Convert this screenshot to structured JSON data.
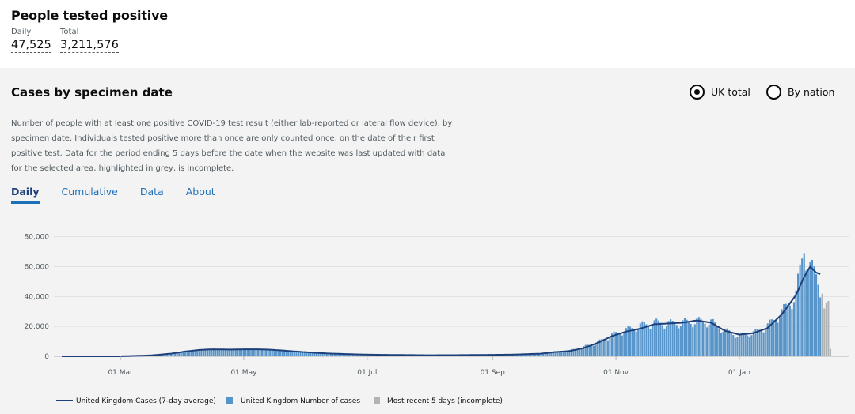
{
  "headline": {
    "title": "People tested positive",
    "daily_label": "Daily",
    "daily_value": "47,525",
    "total_label": "Total",
    "total_value": "3,211,576"
  },
  "card": {
    "title": "Cases by specimen date",
    "radio_options": [
      {
        "label": "UK total",
        "selected": true
      },
      {
        "label": "By nation",
        "selected": false
      }
    ],
    "description": "Number of people with at least one positive COVID-19 test result (either lab-reported or lateral flow device), by specimen date. Individuals tested positive more than once are only counted once, on the date of their first positive test. Data for the period ending 5 days before the date when the website was last updated with data for the selected area, highlighted in grey, is incomplete.",
    "tabs": [
      "Daily",
      "Cumulative",
      "Data",
      "About"
    ],
    "active_tab": "Daily"
  },
  "colors": {
    "line": "#1d3f7a",
    "bar": "#5694ca",
    "incomplete": "#b1b4b6",
    "link": "#1d70b8"
  },
  "chart_data": {
    "type": "bar",
    "x_tick_labels": [
      "01 Mar",
      "01 May",
      "01 Jul",
      "01 Sep",
      "01 Nov",
      "01 Jan"
    ],
    "y_tick_labels": [
      "0",
      "20,000",
      "40,000",
      "60,000",
      "80,000"
    ],
    "ylim": [
      0,
      83000
    ],
    "grid": true,
    "legend_position": "bottom",
    "legend": [
      {
        "label": "United Kingdom Cases (7-day average)",
        "kind": "line"
      },
      {
        "label": "United Kingdom Number of cases",
        "kind": "bar"
      },
      {
        "label": "Most recent 5 days (incomplete)",
        "kind": "bar-incomplete"
      }
    ],
    "series": [
      {
        "name": "United Kingdom Number of cases",
        "values": [
          [
            1,
            0
          ],
          [
            7,
            0
          ],
          [
            14,
            0
          ],
          [
            21,
            0
          ],
          [
            28,
            10
          ],
          [
            35,
            100
          ],
          [
            42,
            300
          ],
          [
            49,
            1000
          ],
          [
            56,
            2000
          ],
          [
            63,
            3500
          ],
          [
            70,
            4500
          ],
          [
            77,
            4800
          ],
          [
            84,
            4500
          ],
          [
            91,
            4800
          ],
          [
            98,
            4700
          ],
          [
            105,
            4500
          ],
          [
            112,
            3800
          ],
          [
            119,
            3000
          ],
          [
            126,
            2600
          ],
          [
            133,
            2100
          ],
          [
            140,
            1700
          ],
          [
            147,
            1400
          ],
          [
            154,
            1200
          ],
          [
            161,
            1100
          ],
          [
            168,
            900
          ],
          [
            175,
            800
          ],
          [
            182,
            700
          ],
          [
            189,
            700
          ],
          [
            196,
            750
          ],
          [
            203,
            850
          ],
          [
            210,
            950
          ],
          [
            217,
            1050
          ],
          [
            224,
            1150
          ],
          [
            231,
            1350
          ],
          [
            238,
            2000
          ],
          [
            245,
            3000
          ],
          [
            252,
            4000
          ],
          [
            259,
            6500
          ],
          [
            266,
            9500
          ],
          [
            273,
            14500
          ],
          [
            280,
            18000
          ],
          [
            287,
            21000
          ],
          [
            294,
            23000
          ],
          [
            301,
            22500
          ],
          [
            308,
            23000
          ],
          [
            315,
            24000
          ],
          [
            322,
            23500
          ],
          [
            329,
            17500
          ],
          [
            336,
            14000
          ],
          [
            343,
            16000
          ],
          [
            350,
            21000
          ],
          [
            357,
            30000
          ],
          [
            364,
            42000
          ],
          [
            368,
            75000
          ],
          [
            371,
            60000
          ],
          [
            374,
            56000
          ],
          [
            376,
            48000
          ]
        ]
      },
      {
        "name": "Most recent 5 days (incomplete)",
        "values": [
          [
            377,
            42000
          ],
          [
            378,
            32000
          ],
          [
            379,
            36000
          ],
          [
            380,
            37000
          ],
          [
            381,
            5000
          ]
        ]
      },
      {
        "name": "United Kingdom Cases (7-day average)",
        "values": [
          [
            1,
            0
          ],
          [
            30,
            0
          ],
          [
            45,
            600
          ],
          [
            55,
            1800
          ],
          [
            62,
            3200
          ],
          [
            69,
            4300
          ],
          [
            76,
            4700
          ],
          [
            84,
            4500
          ],
          [
            91,
            4700
          ],
          [
            98,
            4700
          ],
          [
            105,
            4400
          ],
          [
            112,
            3700
          ],
          [
            119,
            3000
          ],
          [
            126,
            2400
          ],
          [
            133,
            1900
          ],
          [
            140,
            1600
          ],
          [
            147,
            1300
          ],
          [
            154,
            1100
          ],
          [
            168,
            900
          ],
          [
            182,
            750
          ],
          [
            196,
            800
          ],
          [
            210,
            950
          ],
          [
            224,
            1150
          ],
          [
            238,
            1800
          ],
          [
            245,
            2900
          ],
          [
            252,
            3500
          ],
          [
            259,
            5500
          ],
          [
            266,
            9000
          ],
          [
            273,
            13500
          ],
          [
            280,
            16500
          ],
          [
            287,
            18500
          ],
          [
            294,
            21500
          ],
          [
            301,
            22000
          ],
          [
            308,
            22500
          ],
          [
            315,
            24000
          ],
          [
            322,
            22500
          ],
          [
            329,
            17000
          ],
          [
            336,
            14500
          ],
          [
            343,
            15500
          ],
          [
            350,
            19000
          ],
          [
            357,
            28000
          ],
          [
            364,
            41000
          ],
          [
            368,
            53000
          ],
          [
            371,
            60000
          ],
          [
            374,
            56000
          ],
          [
            376,
            55000
          ]
        ]
      }
    ]
  }
}
